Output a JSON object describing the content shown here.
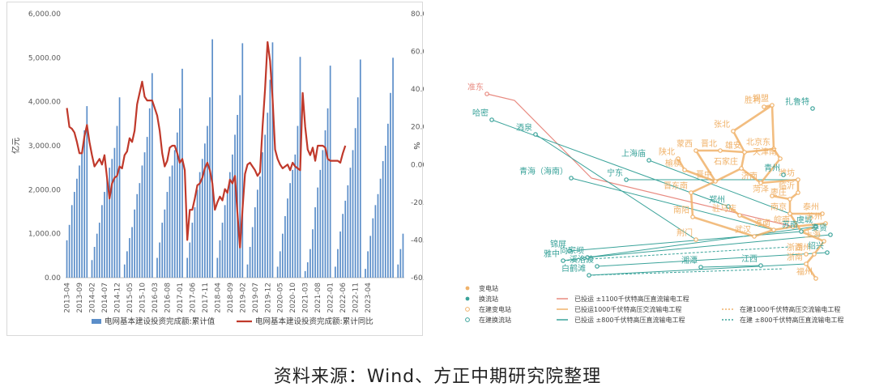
{
  "colors": {
    "bar": "#5b8ec9",
    "line": "#c0392b",
    "substation": "#f0b26a",
    "converter": "#3aa39a",
    "uhv_dc": "#e88a80",
    "uhv_ac": "#f0b26a",
    "dc800": "#3aa39a"
  },
  "chart_data": {
    "type": "bar+line",
    "xlabel": "",
    "ylabel_left": "亿元",
    "ylabel_right": "%",
    "ylim_left": [
      0,
      6000
    ],
    "ylim_right": [
      -60,
      80
    ],
    "yticks_left": [
      "0.00",
      "1,000.00",
      "2,000.00",
      "3,000.00",
      "4,000.00",
      "5,000.00",
      "6,000.00"
    ],
    "yticks_right": [
      "-60.00",
      "-40.00",
      "-20.00",
      "0.00",
      "20.00",
      "40.00",
      "60.00",
      "80.00"
    ],
    "xtick_labels": [
      "2013-04",
      "2013-09",
      "2014-02",
      "2014-07",
      "2014-12",
      "2015-05",
      "2015-10",
      "2016-03",
      "2016-08",
      "2017-01",
      "2017-06",
      "2017-11",
      "2018-04",
      "2018-09",
      "2019-02",
      "2019-07",
      "2019-12",
      "2020-05",
      "2020-10",
      "2021-03",
      "2021-08",
      "2022-01",
      "2022-06",
      "2022-11",
      "2023-04"
    ],
    "start_month": "2013-04",
    "series": [
      {
        "name": "电网基本建设投资完成额:累计值",
        "axis": "left",
        "values": [
          850,
          1200,
          1650,
          1950,
          2250,
          2550,
          2850,
          3350,
          3900,
          null,
          400,
          700,
          1000,
          1250,
          1650,
          1950,
          2250,
          2500,
          2700,
          2950,
          3450,
          4100,
          null,
          300,
          600,
          900,
          1150,
          1550,
          1900,
          2150,
          2550,
          2850,
          3200,
          3850,
          4650,
          null,
          450,
          800,
          1250,
          1550,
          1950,
          2300,
          2550,
          2900,
          3300,
          3850,
          4750,
          null,
          450,
          800,
          1250,
          1600,
          2000,
          2400,
          2700,
          3050,
          3450,
          4100,
          5420,
          null,
          450,
          850,
          1250,
          1650,
          2000,
          2400,
          2800,
          3250,
          3700,
          4150,
          5330,
          null,
          300,
          700,
          1150,
          1600,
          2000,
          2300,
          2850,
          3250,
          3750,
          4500,
          5350,
          null,
          250,
          600,
          1000,
          1400,
          1800,
          2150,
          2450,
          2800,
          3450,
          5020,
          null,
          150,
          350,
          650,
          1100,
          1600,
          2050,
          2450,
          2900,
          3350,
          3850,
          4820,
          null,
          250,
          650,
          1050,
          1450,
          1750,
          2100,
          2500,
          2900,
          3400,
          4100,
          4960,
          null,
          200,
          600,
          950,
          1350,
          1650,
          1900,
          2250,
          2650,
          3000,
          3500,
          4200,
          5000,
          null,
          300,
          650,
          1000
        ]
      },
      {
        "name": "电网基本建设投资完成额:累计同比",
        "axis": "right",
        "values": [
          30,
          20,
          19,
          17,
          12,
          6,
          6,
          15,
          21,
          12,
          5,
          -1,
          1,
          3,
          0,
          5,
          -7,
          -18,
          -10,
          -7,
          -6,
          -1,
          -2,
          5,
          7,
          14,
          12,
          18,
          32,
          38,
          44,
          36,
          34,
          34,
          34,
          30,
          26,
          18,
          6,
          -1,
          2,
          9,
          10,
          10,
          6,
          1,
          3,
          -3,
          -40,
          -24,
          -24,
          -18,
          -11,
          -10,
          -7,
          -2,
          1,
          -3,
          -10,
          -24,
          -20,
          -17,
          -19,
          -13,
          -15,
          -8,
          -10,
          -6,
          -26,
          -44,
          -24,
          -5,
          0,
          1,
          -1,
          -3,
          -6,
          -4,
          20,
          40,
          65,
          55,
          35,
          8,
          3,
          0,
          -2,
          -1,
          0,
          -3,
          1,
          -1,
          -2,
          -3,
          38,
          20,
          8,
          5,
          9,
          2,
          10,
          10,
          10,
          9,
          3,
          2,
          2,
          2,
          2,
          1,
          6,
          10
        ]
      }
    ],
    "legend": [
      "电网基本建设投资完成额:累计值",
      "电网基本建设投资完成额:累计同比"
    ],
    "legend_position": "bottom"
  },
  "map": {
    "labels": [
      {
        "text": "准东",
        "t": "dc"
      },
      {
        "text": "哈密",
        "t": "conv"
      },
      {
        "text": "酒泉",
        "t": "conv"
      },
      {
        "text": "青海（海南）",
        "t": "conv"
      },
      {
        "text": "宁东",
        "t": "conv"
      },
      {
        "text": "上海庙",
        "t": "conv"
      },
      {
        "text": "陕北",
        "t": "sub"
      },
      {
        "text": "榆横",
        "t": "sub"
      },
      {
        "text": "蒙西",
        "t": "sub"
      },
      {
        "text": "晋北",
        "t": "sub"
      },
      {
        "text": "胜利",
        "t": "sub"
      },
      {
        "text": "锡盟",
        "t": "sub"
      },
      {
        "text": "扎鲁特",
        "t": "conv"
      },
      {
        "text": "张北",
        "t": "sub"
      },
      {
        "text": "北京东",
        "t": "sub"
      },
      {
        "text": "天津南",
        "t": "sub"
      },
      {
        "text": "雄安",
        "t": "sub"
      },
      {
        "text": "石家庄",
        "t": "sub"
      },
      {
        "text": "晋中",
        "t": "sub"
      },
      {
        "text": "济南",
        "t": "sub"
      },
      {
        "text": "潍坊",
        "t": "sub"
      },
      {
        "text": "临沂",
        "t": "sub"
      },
      {
        "text": "青州",
        "t": "conv"
      },
      {
        "text": "菏泽",
        "t": "sub"
      },
      {
        "text": "枣庄",
        "t": "sub"
      },
      {
        "text": "晋东南",
        "t": "sub"
      },
      {
        "text": "郑州",
        "t": "conv"
      },
      {
        "text": "驻马店",
        "t": "sub"
      },
      {
        "text": "南阳",
        "t": "sub"
      },
      {
        "text": "荆门",
        "t": "sub"
      },
      {
        "text": "武汉",
        "t": "sub"
      },
      {
        "text": "南京",
        "t": "sub"
      },
      {
        "text": "泰州",
        "t": "sub"
      },
      {
        "text": "淮南",
        "t": "sub"
      },
      {
        "text": "皖南",
        "t": "sub"
      },
      {
        "text": "虞城",
        "t": "conv"
      },
      {
        "text": "苏南",
        "t": "conv"
      },
      {
        "text": "苏州",
        "t": "sub"
      },
      {
        "text": "泰贤",
        "t": "conv"
      },
      {
        "text": "上海",
        "t": "sub"
      },
      {
        "text": "湖州",
        "t": "sub"
      },
      {
        "text": "绍兴",
        "t": "conv"
      },
      {
        "text": "浙南",
        "t": "sub"
      },
      {
        "text": "浙西",
        "t": "sub"
      },
      {
        "text": "福州",
        "t": "sub"
      },
      {
        "text": "江西",
        "t": "conv"
      },
      {
        "text": "湘潭",
        "t": "conv"
      },
      {
        "text": "锦屏",
        "t": "conv"
      },
      {
        "text": "向家坝",
        "t": "conv"
      },
      {
        "text": "溪洛渡",
        "t": "conv"
      },
      {
        "text": "雅中",
        "t": "conv"
      },
      {
        "text": "白鹤滩",
        "t": "conv"
      }
    ],
    "legend": [
      {
        "text": "变电站",
        "kind": "dot-sub"
      },
      {
        "text": "换流站",
        "kind": "dot-conv"
      },
      {
        "text": "在建变电站",
        "kind": "ring-sub"
      },
      {
        "text": "在建换流站",
        "kind": "ring-conv"
      },
      {
        "text": "已投运 ±1100千伏特高压直流输电工程",
        "kind": "line-dc"
      },
      {
        "text": "已投运1000千伏特高压交流输电工程",
        "kind": "line-ac"
      },
      {
        "text": "已投运 ±800千伏特高压直流输电工程",
        "kind": "line-800"
      },
      {
        "text": "在建1000千伏特高压交流输电工程",
        "kind": "dash-ac"
      },
      {
        "text": "在建 ±800千伏特高压直流输电工程",
        "kind": "dash-800"
      }
    ]
  },
  "source": "资料来源：Wind、方正中期研究院整理"
}
